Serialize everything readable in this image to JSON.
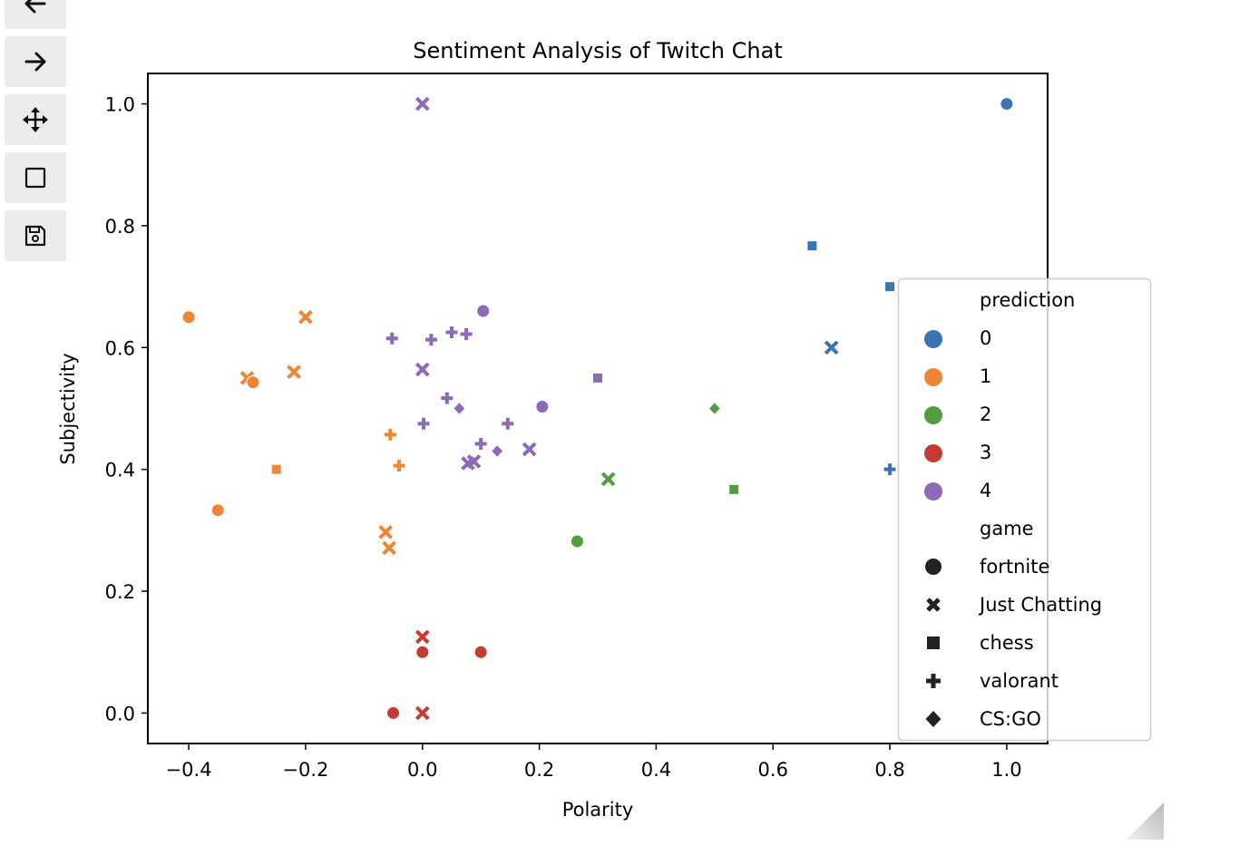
{
  "toolbar": {
    "buttons": [
      {
        "name": "back",
        "icon": "arrow-left-icon"
      },
      {
        "name": "forward",
        "icon": "arrow-right-icon"
      },
      {
        "name": "pan",
        "icon": "move-icon"
      },
      {
        "name": "zoom",
        "icon": "square-icon"
      },
      {
        "name": "save",
        "icon": "floppy-disk-icon"
      }
    ]
  },
  "chart_data": {
    "type": "scatter",
    "title": "Sentiment Analysis of Twitch Chat",
    "xlabel": "Polarity",
    "ylabel": "Subjectivity",
    "xlim": [
      -0.47,
      1.07
    ],
    "ylim": [
      -0.05,
      1.05
    ],
    "xticks": [
      -0.4,
      -0.2,
      0.0,
      0.2,
      0.4,
      0.6,
      0.8,
      1.0
    ],
    "xtick_labels": [
      "−0.4",
      "−0.2",
      "0.0",
      "0.2",
      "0.4",
      "0.6",
      "0.8",
      "1.0"
    ],
    "yticks": [
      0.0,
      0.2,
      0.4,
      0.6,
      0.8,
      1.0
    ],
    "ytick_labels": [
      "0.0",
      "0.2",
      "0.4",
      "0.6",
      "0.8",
      "1.0"
    ],
    "grid": false,
    "legend_position": "right",
    "legend": {
      "hue_title": "prediction",
      "hue_entries": [
        {
          "label": "0",
          "color": "#3a75b0"
        },
        {
          "label": "1",
          "color": "#ef8636"
        },
        {
          "label": "2",
          "color": "#519e3e"
        },
        {
          "label": "3",
          "color": "#c53a32"
        },
        {
          "label": "4",
          "color": "#8d69b8"
        }
      ],
      "style_title": "game",
      "style_entries": [
        {
          "label": "fortnite",
          "marker": "circle"
        },
        {
          "label": "Just Chatting",
          "marker": "x"
        },
        {
          "label": "chess",
          "marker": "square"
        },
        {
          "label": "valorant",
          "marker": "plus"
        },
        {
          "label": "CS:GO",
          "marker": "diamond"
        }
      ]
    },
    "points": [
      {
        "x": 1.0,
        "y": 1.0,
        "prediction": 0,
        "game": "fortnite"
      },
      {
        "x": 0.667,
        "y": 0.767,
        "prediction": 0,
        "game": "chess"
      },
      {
        "x": 0.8,
        "y": 0.7,
        "prediction": 0,
        "game": "chess"
      },
      {
        "x": 0.7,
        "y": 0.6,
        "prediction": 0,
        "game": "Just Chatting"
      },
      {
        "x": 0.8,
        "y": 0.4,
        "prediction": 0,
        "game": "valorant"
      },
      {
        "x": -0.4,
        "y": 0.65,
        "prediction": 1,
        "game": "fortnite"
      },
      {
        "x": -0.2,
        "y": 0.65,
        "prediction": 1,
        "game": "Just Chatting"
      },
      {
        "x": -0.3,
        "y": 0.55,
        "prediction": 1,
        "game": "Just Chatting"
      },
      {
        "x": -0.29,
        "y": 0.543,
        "prediction": 1,
        "game": "fortnite"
      },
      {
        "x": -0.22,
        "y": 0.56,
        "prediction": 1,
        "game": "Just Chatting"
      },
      {
        "x": -0.25,
        "y": 0.4,
        "prediction": 1,
        "game": "chess"
      },
      {
        "x": -0.35,
        "y": 0.333,
        "prediction": 1,
        "game": "fortnite"
      },
      {
        "x": -0.055,
        "y": 0.457,
        "prediction": 1,
        "game": "valorant"
      },
      {
        "x": -0.04,
        "y": 0.406,
        "prediction": 1,
        "game": "valorant"
      },
      {
        "x": -0.063,
        "y": 0.297,
        "prediction": 1,
        "game": "Just Chatting"
      },
      {
        "x": -0.057,
        "y": 0.271,
        "prediction": 1,
        "game": "Just Chatting"
      },
      {
        "x": 0.5,
        "y": 0.5,
        "prediction": 2,
        "game": "CS:GO"
      },
      {
        "x": 0.318,
        "y": 0.384,
        "prediction": 2,
        "game": "Just Chatting"
      },
      {
        "x": 0.533,
        "y": 0.367,
        "prediction": 2,
        "game": "chess"
      },
      {
        "x": 0.265,
        "y": 0.282,
        "prediction": 2,
        "game": "fortnite"
      },
      {
        "x": 0.0,
        "y": 0.125,
        "prediction": 3,
        "game": "Just Chatting"
      },
      {
        "x": 0.0,
        "y": 0.1,
        "prediction": 3,
        "game": "fortnite"
      },
      {
        "x": 0.1,
        "y": 0.1,
        "prediction": 3,
        "game": "fortnite"
      },
      {
        "x": -0.05,
        "y": 0.0,
        "prediction": 3,
        "game": "fortnite"
      },
      {
        "x": 0.0,
        "y": 0.0,
        "prediction": 3,
        "game": "Just Chatting"
      },
      {
        "x": 0.0,
        "y": 1.0,
        "prediction": 4,
        "game": "Just Chatting"
      },
      {
        "x": 0.104,
        "y": 0.66,
        "prediction": 4,
        "game": "fortnite"
      },
      {
        "x": -0.052,
        "y": 0.615,
        "prediction": 4,
        "game": "valorant"
      },
      {
        "x": 0.015,
        "y": 0.613,
        "prediction": 4,
        "game": "valorant"
      },
      {
        "x": 0.05,
        "y": 0.625,
        "prediction": 4,
        "game": "valorant"
      },
      {
        "x": 0.075,
        "y": 0.622,
        "prediction": 4,
        "game": "valorant"
      },
      {
        "x": 0.0,
        "y": 0.564,
        "prediction": 4,
        "game": "Just Chatting"
      },
      {
        "x": 0.3,
        "y": 0.55,
        "prediction": 4,
        "game": "chess"
      },
      {
        "x": 0.042,
        "y": 0.517,
        "prediction": 4,
        "game": "valorant"
      },
      {
        "x": 0.063,
        "y": 0.5,
        "prediction": 4,
        "game": "CS:GO"
      },
      {
        "x": 0.205,
        "y": 0.503,
        "prediction": 4,
        "game": "fortnite"
      },
      {
        "x": 0.002,
        "y": 0.475,
        "prediction": 4,
        "game": "valorant"
      },
      {
        "x": 0.146,
        "y": 0.475,
        "prediction": 4,
        "game": "valorant"
      },
      {
        "x": 0.1,
        "y": 0.442,
        "prediction": 4,
        "game": "valorant"
      },
      {
        "x": 0.183,
        "y": 0.433,
        "prediction": 4,
        "game": "Just Chatting"
      },
      {
        "x": 0.128,
        "y": 0.43,
        "prediction": 4,
        "game": "CS:GO"
      },
      {
        "x": 0.078,
        "y": 0.41,
        "prediction": 4,
        "game": "Just Chatting"
      },
      {
        "x": 0.088,
        "y": 0.413,
        "prediction": 4,
        "game": "Just Chatting"
      }
    ]
  }
}
